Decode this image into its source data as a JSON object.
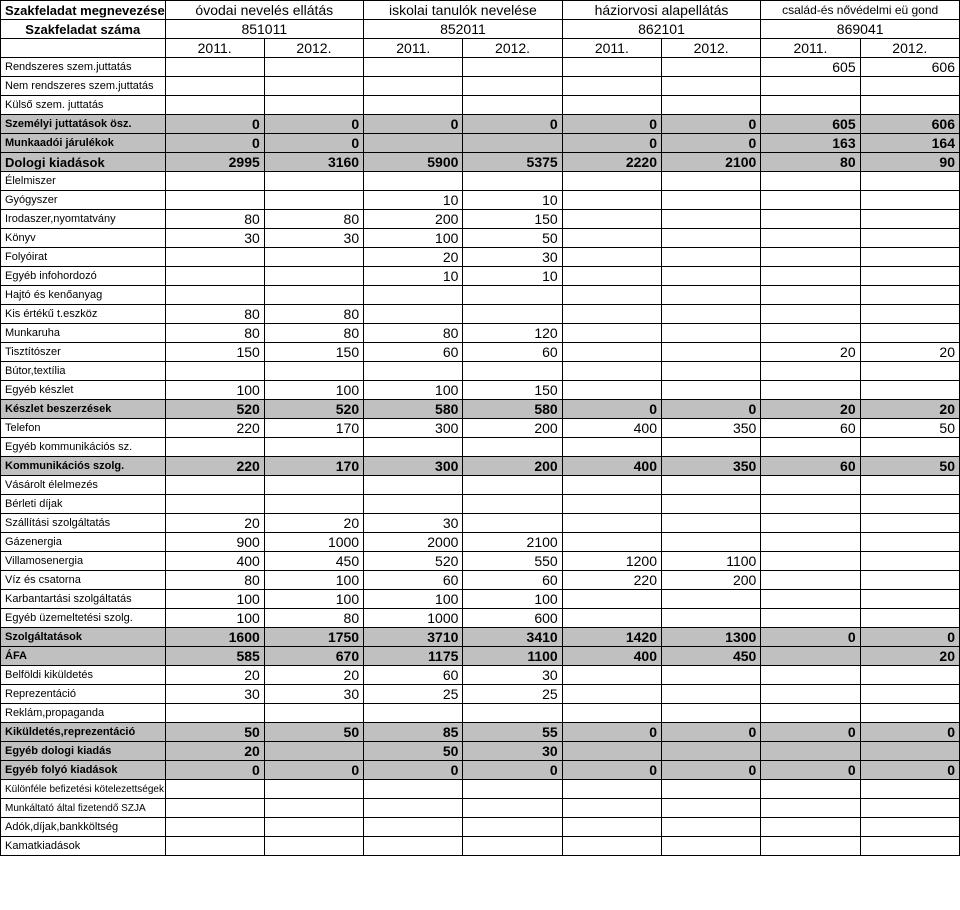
{
  "header": {
    "row1_label": "Szakfeladat megnevezése",
    "row2_label": "Szakfeladat száma",
    "categories": [
      "óvodai nevelés ellátás",
      "iskolai tanulók nevelése",
      "háziorvosi alapellátás",
      "család-és nővédelmi eü gond"
    ],
    "codes": [
      "851011",
      "852011",
      "862101",
      "869041"
    ],
    "years": [
      "2011.",
      "2012.",
      "2011.",
      "2012.",
      "2011.",
      "2012.",
      "2011.",
      "2012."
    ]
  },
  "rows": [
    {
      "label": "Rendszeres szem.juttatás",
      "vals": [
        "",
        "",
        "",
        "",
        "",
        "",
        "605",
        "606"
      ],
      "shade": false,
      "bold": false,
      "cls": "fs11"
    },
    {
      "label": "Nem rendszeres szem.juttatás",
      "vals": [
        "",
        "",
        "",
        "",
        "",
        "",
        "",
        ""
      ],
      "shade": false,
      "bold": false,
      "cls": "fs11"
    },
    {
      "label": "Külső szem. juttatás",
      "vals": [
        "",
        "",
        "",
        "",
        "",
        "",
        "",
        ""
      ],
      "shade": false,
      "bold": false,
      "cls": "fs11"
    },
    {
      "label": "Személyi juttatások ösz.",
      "vals": [
        "0",
        "0",
        "0",
        "0",
        "0",
        "0",
        "605",
        "606"
      ],
      "shade": true,
      "bold": true,
      "cls": "fs11"
    },
    {
      "label": "Munkaadói járulékok",
      "vals": [
        "0",
        "0",
        "",
        "",
        "0",
        "0",
        "163",
        "164"
      ],
      "shade": true,
      "bold": true,
      "cls": "fs11"
    },
    {
      "label": "Dologi kiadások",
      "vals": [
        "2995",
        "3160",
        "5900",
        "5375",
        "2220",
        "2100",
        "80",
        "90"
      ],
      "shade": true,
      "bold": true,
      "cls": "fs13"
    },
    {
      "label": "Élelmiszer",
      "vals": [
        "",
        "",
        "",
        "",
        "",
        "",
        "",
        ""
      ],
      "shade": false,
      "bold": false,
      "cls": "fs11"
    },
    {
      "label": "Gyógyszer",
      "vals": [
        "",
        "",
        "10",
        "10",
        "",
        "",
        "",
        ""
      ],
      "shade": false,
      "bold": false,
      "cls": "fs11"
    },
    {
      "label": "Irodaszer,nyomtatvány",
      "vals": [
        "80",
        "80",
        "200",
        "150",
        "",
        "",
        "",
        ""
      ],
      "shade": false,
      "bold": false,
      "cls": "fs11"
    },
    {
      "label": "Könyv",
      "vals": [
        "30",
        "30",
        "100",
        "50",
        "",
        "",
        "",
        ""
      ],
      "shade": false,
      "bold": false,
      "cls": "fs11"
    },
    {
      "label": "Folyóirat",
      "vals": [
        "",
        "",
        "20",
        "30",
        "",
        "",
        "",
        ""
      ],
      "shade": false,
      "bold": false,
      "cls": "fs11"
    },
    {
      "label": "Egyéb infohordozó",
      "vals": [
        "",
        "",
        "10",
        "10",
        "",
        "",
        "",
        ""
      ],
      "shade": false,
      "bold": false,
      "cls": "fs11"
    },
    {
      "label": "Hajtó és kenőanyag",
      "vals": [
        "",
        "",
        "",
        "",
        "",
        "",
        "",
        ""
      ],
      "shade": false,
      "bold": false,
      "cls": "fs11"
    },
    {
      "label": "Kis értékű t.eszköz",
      "vals": [
        "80",
        "80",
        "",
        "",
        "",
        "",
        "",
        ""
      ],
      "shade": false,
      "bold": false,
      "cls": "fs11"
    },
    {
      "label": "Munkaruha",
      "vals": [
        "80",
        "80",
        "80",
        "120",
        "",
        "",
        "",
        ""
      ],
      "shade": false,
      "bold": false,
      "cls": "fs11"
    },
    {
      "label": "Tisztítószer",
      "vals": [
        "150",
        "150",
        "60",
        "60",
        "",
        "",
        "20",
        "20"
      ],
      "shade": false,
      "bold": false,
      "cls": "fs11"
    },
    {
      "label": "Bútor,textília",
      "vals": [
        "",
        "",
        "",
        "",
        "",
        "",
        "",
        ""
      ],
      "shade": false,
      "bold": false,
      "cls": "fs11"
    },
    {
      "label": "Egyéb készlet",
      "vals": [
        "100",
        "100",
        "100",
        "150",
        "",
        "",
        "",
        ""
      ],
      "shade": false,
      "bold": false,
      "cls": "fs11"
    },
    {
      "label": "Készlet beszerzések",
      "vals": [
        "520",
        "520",
        "580",
        "580",
        "0",
        "0",
        "20",
        "20"
      ],
      "shade": true,
      "bold": true,
      "cls": "fs11"
    },
    {
      "label": "Telefon",
      "vals": [
        "220",
        "170",
        "300",
        "200",
        "400",
        "350",
        "60",
        "50"
      ],
      "shade": false,
      "bold": false,
      "cls": "fs11"
    },
    {
      "label": "Egyéb kommunikációs sz.",
      "vals": [
        "",
        "",
        "",
        "",
        "",
        "",
        "",
        ""
      ],
      "shade": false,
      "bold": false,
      "cls": "fs11"
    },
    {
      "label": "Kommunikációs szolg.",
      "vals": [
        "220",
        "170",
        "300",
        "200",
        "400",
        "350",
        "60",
        "50"
      ],
      "shade": true,
      "bold": true,
      "cls": "fs11"
    },
    {
      "label": "Vásárolt élelmezés",
      "vals": [
        "",
        "",
        "",
        "",
        "",
        "",
        "",
        ""
      ],
      "shade": false,
      "bold": false,
      "cls": "fs11"
    },
    {
      "label": "Bérleti díjak",
      "vals": [
        "",
        "",
        "",
        "",
        "",
        "",
        "",
        ""
      ],
      "shade": false,
      "bold": false,
      "cls": "fs11"
    },
    {
      "label": "Szállítási szolgáltatás",
      "vals": [
        "20",
        "20",
        "30",
        "",
        "",
        "",
        "",
        ""
      ],
      "shade": false,
      "bold": false,
      "cls": "fs11"
    },
    {
      "label": "Gázenergia",
      "vals": [
        "900",
        "1000",
        "2000",
        "2100",
        "",
        "",
        "",
        ""
      ],
      "shade": false,
      "bold": false,
      "cls": "fs11"
    },
    {
      "label": "Villamosenergia",
      "vals": [
        "400",
        "450",
        "520",
        "550",
        "1200",
        "1100",
        "",
        ""
      ],
      "shade": false,
      "bold": false,
      "cls": "fs11"
    },
    {
      "label": "Víz és csatorna",
      "vals": [
        "80",
        "100",
        "60",
        "60",
        "220",
        "200",
        "",
        ""
      ],
      "shade": false,
      "bold": false,
      "cls": "fs11"
    },
    {
      "label": "Karbantartási szolgáltatás",
      "vals": [
        "100",
        "100",
        "100",
        "100",
        "",
        "",
        "",
        ""
      ],
      "shade": false,
      "bold": false,
      "cls": "fs11"
    },
    {
      "label": "Egyéb üzemeltetési szolg.",
      "vals": [
        "100",
        "80",
        "1000",
        "600",
        "",
        "",
        "",
        ""
      ],
      "shade": false,
      "bold": false,
      "cls": "fs11"
    },
    {
      "label": "Szolgáltatások",
      "vals": [
        "1600",
        "1750",
        "3710",
        "3410",
        "1420",
        "1300",
        "0",
        "0"
      ],
      "shade": true,
      "bold": true,
      "cls": "fs11"
    },
    {
      "label": "ÁFA",
      "vals": [
        "585",
        "670",
        "1175",
        "1100",
        "400",
        "450",
        "",
        "20"
      ],
      "shade": true,
      "bold": true,
      "cls": "fs11"
    },
    {
      "label": "Belföldi kiküldetés",
      "vals": [
        "20",
        "20",
        "60",
        "30",
        "",
        "",
        "",
        ""
      ],
      "shade": false,
      "bold": false,
      "cls": "fs11"
    },
    {
      "label": "Reprezentáció",
      "vals": [
        "30",
        "30",
        "25",
        "25",
        "",
        "",
        "",
        ""
      ],
      "shade": false,
      "bold": false,
      "cls": "fs11"
    },
    {
      "label": "Reklám,propaganda",
      "vals": [
        "",
        "",
        "",
        "",
        "",
        "",
        "",
        ""
      ],
      "shade": false,
      "bold": false,
      "cls": "fs11"
    },
    {
      "label": "Kiküldetés,reprezentáció",
      "vals": [
        "50",
        "50",
        "85",
        "55",
        "0",
        "0",
        "0",
        "0"
      ],
      "shade": true,
      "bold": true,
      "cls": "fs11"
    },
    {
      "label": "Egyéb dologi kiadás",
      "vals": [
        "20",
        "",
        "50",
        "30",
        "",
        "",
        "",
        ""
      ],
      "shade": true,
      "bold": true,
      "cls": "fs11"
    },
    {
      "label": "Egyéb folyó kiadások",
      "vals": [
        "0",
        "0",
        "0",
        "0",
        "0",
        "0",
        "0",
        "0"
      ],
      "shade": true,
      "bold": true,
      "cls": "fs11"
    },
    {
      "label": "Különféle befizetési kötelezettségek",
      "vals": [
        "",
        "",
        "",
        "",
        "",
        "",
        "",
        ""
      ],
      "shade": false,
      "bold": false,
      "cls": "small"
    },
    {
      "label": "Munkáltató által fizetendő SZJA",
      "vals": [
        "",
        "",
        "",
        "",
        "",
        "",
        "",
        ""
      ],
      "shade": false,
      "bold": false,
      "cls": "small"
    },
    {
      "label": "Adók,díjak,bankköltség",
      "vals": [
        "",
        "",
        "",
        "",
        "",
        "",
        "",
        ""
      ],
      "shade": false,
      "bold": false,
      "cls": "fs11"
    },
    {
      "label": "Kamatkiadások",
      "vals": [
        "",
        "",
        "",
        "",
        "",
        "",
        "",
        ""
      ],
      "shade": false,
      "bold": false,
      "cls": "fs11"
    }
  ]
}
